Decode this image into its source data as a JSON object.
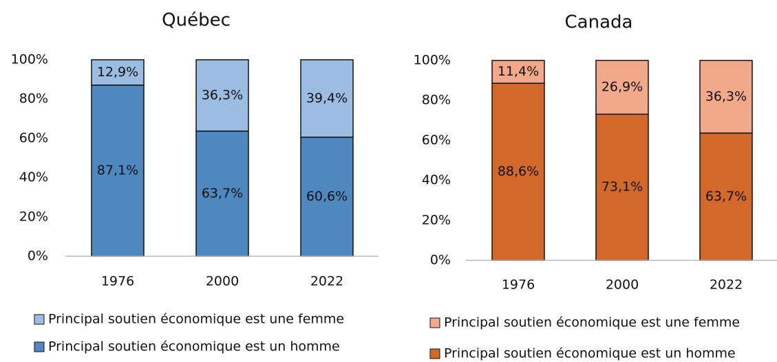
{
  "chart_data": [
    {
      "type": "stacked_bar",
      "title": "Québec",
      "categories": [
        "1976",
        "2000",
        "2022"
      ],
      "series": [
        {
          "name": "Principal soutien économique est un homme",
          "color": "#4f88bf",
          "values": [
            87.1,
            63.7,
            60.6
          ],
          "value_labels": [
            "87,1%",
            "63,7%",
            "60,6%"
          ]
        },
        {
          "name": "Principal soutien économique est une femme",
          "color": "#9bbde2",
          "values": [
            12.9,
            36.3,
            39.4
          ],
          "value_labels": [
            "12,9%",
            "36,3%",
            "39,4%"
          ]
        }
      ],
      "ylim": [
        0,
        100
      ],
      "yticks": [
        {
          "value": 0,
          "label": "0%"
        },
        {
          "value": 20,
          "label": "20%"
        },
        {
          "value": 40,
          "label": "40%"
        },
        {
          "value": 60,
          "label": "60%"
        },
        {
          "value": 80,
          "label": "80%"
        },
        {
          "value": 100,
          "label": "100%"
        }
      ],
      "grid": false,
      "legend": "bottom"
    },
    {
      "type": "stacked_bar",
      "title": "Canada",
      "categories": [
        "1976",
        "2000",
        "2022"
      ],
      "series": [
        {
          "name": "Principal soutien économique est un homme",
          "color": "#d2692b",
          "values": [
            88.6,
            73.1,
            63.7
          ],
          "value_labels": [
            "88,6%",
            "73,1%",
            "63,7%"
          ]
        },
        {
          "name": "Principal soutien économique est une femme",
          "color": "#f2a98a",
          "values": [
            11.4,
            26.9,
            36.3
          ],
          "value_labels": [
            "11,4%",
            "26,9%",
            "36,3%"
          ]
        }
      ],
      "ylim": [
        0,
        100
      ],
      "yticks": [
        {
          "value": 0,
          "label": "0%"
        },
        {
          "value": 20,
          "label": "20%"
        },
        {
          "value": 40,
          "label": "40%"
        },
        {
          "value": 60,
          "label": "60%"
        },
        {
          "value": 80,
          "label": "80%"
        },
        {
          "value": 100,
          "label": "100%"
        }
      ],
      "grid": false,
      "legend": "bottom"
    }
  ]
}
